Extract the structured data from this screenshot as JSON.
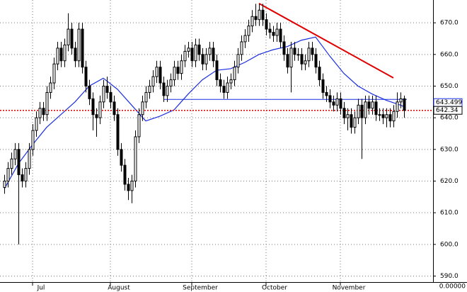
{
  "chart_data": {
    "type": "candlestick",
    "ylim": [
      588.1,
      677.2
    ],
    "yticks": [
      {
        "value": 590,
        "label": "590.0"
      },
      {
        "value": 600,
        "label": "600.0"
      },
      {
        "value": 610,
        "label": "610.0"
      },
      {
        "value": 620,
        "label": "620.0"
      },
      {
        "value": 630,
        "label": "630.0"
      },
      {
        "value": 640,
        "label": "640.0"
      },
      {
        "value": 650,
        "label": "650.0"
      },
      {
        "value": 660,
        "label": "660.0"
      },
      {
        "value": 670,
        "label": "670.0"
      }
    ],
    "xticks": [
      {
        "value": 8,
        "label": "Jul"
      },
      {
        "value": 30,
        "label": "August"
      },
      {
        "value": 53,
        "label": "September"
      },
      {
        "value": 74,
        "label": "October"
      },
      {
        "value": 95,
        "label": "November"
      }
    ],
    "grid": true,
    "bottom_label": "0.00000",
    "up_color": "#ffffff",
    "down_color": "#000000",
    "open": [
      618,
      620,
      624,
      627,
      630,
      622,
      620,
      624,
      630,
      636,
      640,
      643,
      641,
      648,
      651,
      657,
      662,
      658,
      663,
      668,
      662,
      658,
      668,
      656,
      650,
      646,
      641,
      640,
      645,
      650,
      648,
      645,
      641,
      630,
      625,
      619,
      617,
      620,
      634,
      641,
      645,
      648,
      650,
      653,
      656,
      651,
      647,
      650,
      652,
      656,
      654,
      658,
      661,
      662,
      658,
      663,
      660,
      657,
      660,
      662,
      658,
      652,
      650,
      648,
      651,
      652,
      656,
      660,
      664,
      666,
      669,
      672,
      671,
      674,
      671,
      668,
      667,
      666,
      668,
      664,
      660,
      656,
      662,
      660,
      660,
      657,
      658,
      662,
      660,
      656,
      652,
      648,
      647,
      645,
      644,
      646,
      643,
      640,
      641,
      637,
      640,
      644,
      640,
      645,
      643,
      645,
      641,
      641,
      640,
      641,
      639,
      642,
      645,
      646
    ],
    "high": [
      622,
      626,
      629,
      632,
      632,
      624,
      626,
      632,
      638,
      642,
      645,
      645,
      650,
      653,
      659,
      664,
      664,
      665,
      673,
      670,
      664,
      670,
      670,
      658,
      652,
      648,
      643,
      647,
      652,
      653,
      650,
      647,
      643,
      632,
      627,
      621,
      622,
      636,
      643,
      647,
      650,
      652,
      655,
      658,
      658,
      653,
      652,
      654,
      658,
      658,
      660,
      663,
      664,
      664,
      665,
      665,
      662,
      662,
      664,
      664,
      660,
      654,
      652,
      653,
      654,
      658,
      662,
      666,
      668,
      671,
      674,
      676,
      676,
      676,
      673,
      670,
      669,
      670,
      670,
      666,
      662,
      664,
      664,
      662,
      662,
      660,
      664,
      664,
      662,
      658,
      654,
      650,
      649,
      647,
      648,
      648,
      645,
      643,
      643,
      642,
      646,
      646,
      647,
      647,
      647,
      647,
      643,
      643,
      643,
      643,
      644,
      648,
      648,
      647
    ],
    "low": [
      616,
      618,
      622,
      625,
      600,
      618,
      618,
      622,
      628,
      634,
      638,
      639,
      639,
      646,
      649,
      655,
      656,
      656,
      661,
      660,
      656,
      656,
      654,
      648,
      644,
      636,
      634,
      638,
      643,
      646,
      643,
      639,
      628,
      623,
      617,
      614,
      613,
      618,
      632,
      639,
      643,
      646,
      648,
      651,
      649,
      645,
      645,
      648,
      650,
      652,
      652,
      656,
      659,
      656,
      656,
      658,
      655,
      655,
      658,
      656,
      650,
      648,
      646,
      646,
      649,
      650,
      654,
      658,
      662,
      664,
      667,
      669,
      669,
      669,
      666,
      665,
      664,
      664,
      662,
      658,
      654,
      648,
      658,
      658,
      655,
      655,
      656,
      658,
      654,
      650,
      646,
      645,
      643,
      642,
      642,
      641,
      638,
      636,
      635,
      635,
      638,
      627,
      638,
      641,
      641,
      639,
      639,
      638,
      637,
      637,
      637,
      640,
      643,
      640
    ],
    "close": [
      620,
      624,
      627,
      630,
      622,
      620,
      624,
      630,
      636,
      640,
      643,
      641,
      648,
      651,
      657,
      662,
      658,
      663,
      668,
      662,
      658,
      668,
      656,
      650,
      646,
      641,
      640,
      645,
      650,
      648,
      645,
      641,
      630,
      625,
      619,
      617,
      620,
      634,
      641,
      645,
      648,
      650,
      653,
      656,
      651,
      647,
      650,
      652,
      656,
      654,
      658,
      661,
      662,
      658,
      663,
      660,
      657,
      660,
      662,
      658,
      652,
      650,
      648,
      651,
      652,
      656,
      660,
      664,
      666,
      669,
      672,
      671,
      674,
      671,
      668,
      667,
      666,
      668,
      664,
      660,
      656,
      662,
      660,
      660,
      657,
      658,
      662,
      660,
      656,
      652,
      648,
      647,
      645,
      644,
      646,
      643,
      640,
      641,
      637,
      640,
      644,
      640,
      645,
      643,
      645,
      641,
      641,
      640,
      641,
      639,
      642,
      645,
      646,
      642.34
    ],
    "close_label": "642.34",
    "last_price_color": "#e00000",
    "ma": {
      "color": "#1a2fe0",
      "x": [
        0,
        4,
        8,
        12,
        16,
        20,
        24,
        28,
        32,
        36,
        40,
        44,
        48,
        52,
        56,
        60,
        64,
        68,
        72,
        76,
        80,
        84,
        88,
        92,
        96,
        100,
        104,
        108,
        112,
        113
      ],
      "values": [
        617.5,
        625.5,
        631.5,
        637,
        641,
        645,
        650,
        652.5,
        649,
        644,
        639,
        640.5,
        642.5,
        647.5,
        652,
        655,
        655.5,
        657.5,
        660,
        661.5,
        662.5,
        664.5,
        665.5,
        659.5,
        654,
        650,
        647.5,
        645.5,
        644,
        643.5
      ],
      "value_label": "643.499"
    },
    "trendlines": [
      {
        "color": "#e00000",
        "x": [
          72,
          110
        ],
        "values": [
          676.1,
          652.6
        ]
      },
      {
        "color": "#1a2fe0",
        "x": [
          45,
          113.8
        ],
        "values": [
          645.8,
          645.8
        ]
      }
    ]
  }
}
